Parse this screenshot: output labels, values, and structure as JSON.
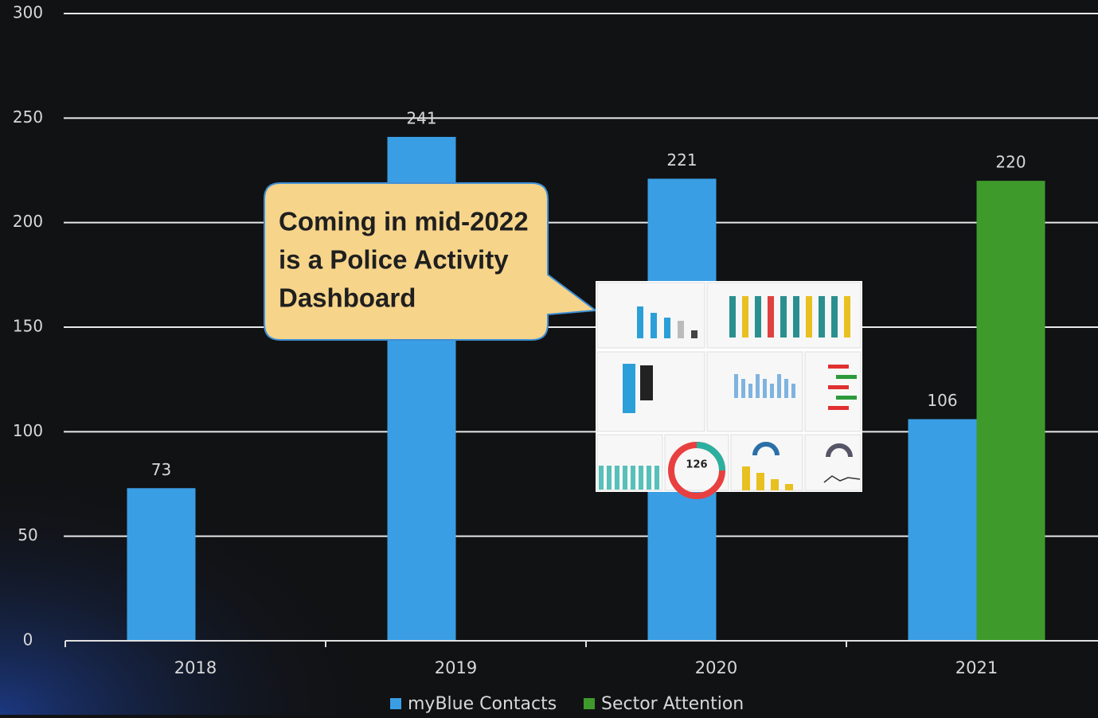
{
  "chart_data": {
    "type": "bar",
    "categories": [
      "2018",
      "2019",
      "2020",
      "2021"
    ],
    "series": [
      {
        "name": "myBlue Contacts",
        "color": "#3a9ee4",
        "values": [
          73,
          241,
          221,
          106
        ]
      },
      {
        "name": "Sector Attention",
        "color": "#3f9a2c",
        "values": [
          null,
          null,
          null,
          220
        ]
      }
    ],
    "ylim": [
      0,
      300
    ],
    "yticks": [
      0,
      50,
      100,
      150,
      200,
      250,
      300
    ],
    "grid": true,
    "legend": "bottom",
    "annotation_lines": [
      "Coming in mid-2022",
      "is a Police Activity",
      "Dashboard"
    ],
    "inset_value": 126
  }
}
